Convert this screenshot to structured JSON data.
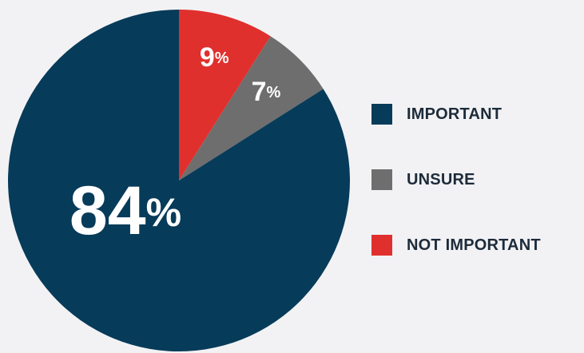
{
  "chart_data": {
    "type": "pie",
    "categories": [
      "IMPORTANT",
      "UNSURE",
      "NOT IMPORTANT"
    ],
    "values": [
      84,
      7,
      9
    ],
    "unit": "%",
    "colors": {
      "IMPORTANT": "#073b5a",
      "UNSURE": "#6e6e6e",
      "NOT IMPORTANT": "#e0302d"
    },
    "data_labels": [
      "84",
      "7",
      "9"
    ],
    "legend_placement": "right",
    "title": ""
  },
  "legend": {
    "items": [
      {
        "label": "IMPORTANT",
        "color": "#073b5a"
      },
      {
        "label": "UNSURE",
        "color": "#6e6e6e"
      },
      {
        "label": "NOT IMPORTANT",
        "color": "#e0302d"
      }
    ]
  }
}
